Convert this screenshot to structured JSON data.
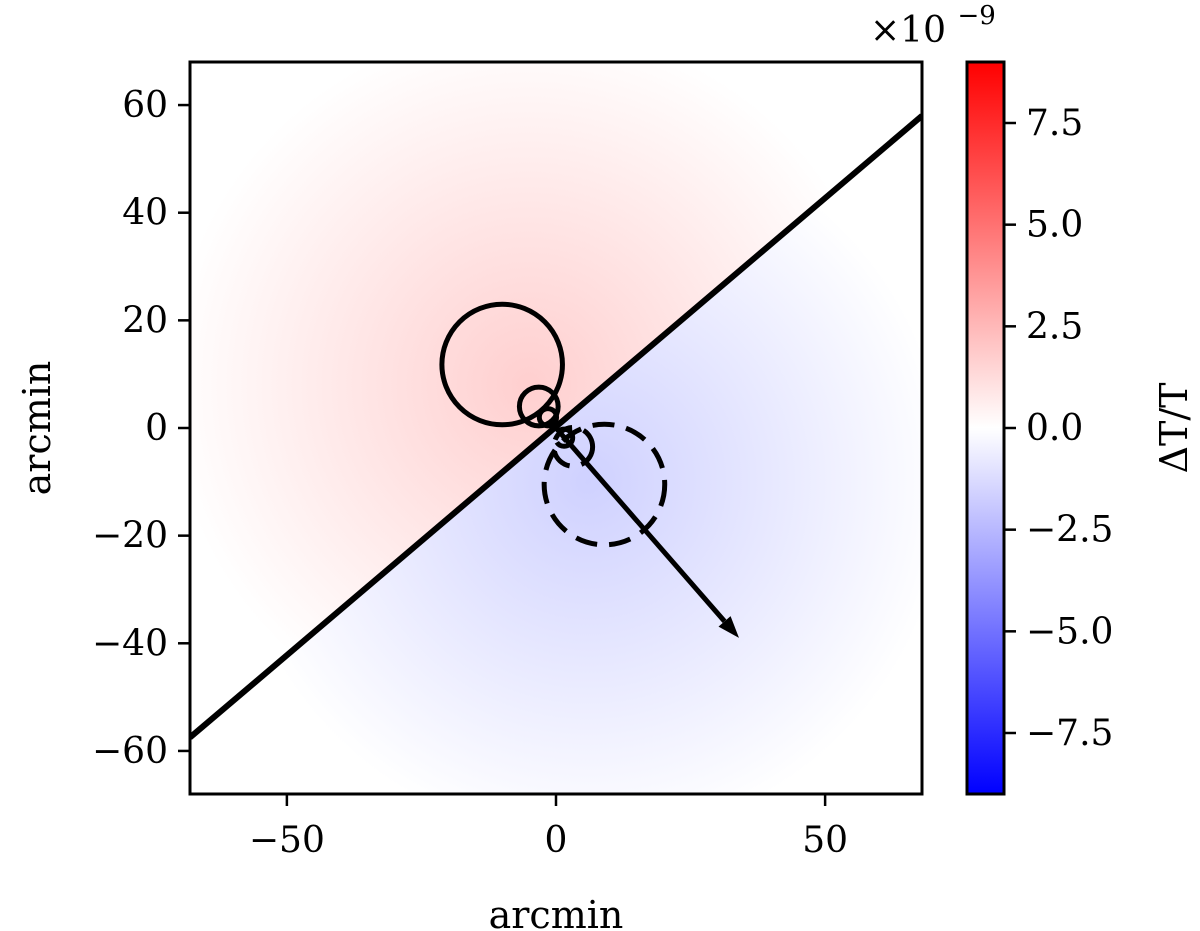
{
  "chart_data": {
    "type": "heatmap",
    "title": "",
    "xlabel": "arcmin",
    "ylabel": "arcmin",
    "xlim": [
      -68,
      68
    ],
    "ylim": [
      -68,
      68
    ],
    "xticks": [
      -50,
      0,
      50
    ],
    "xtick_labels": [
      "−50",
      "0",
      "50"
    ],
    "yticks": [
      60,
      40,
      20,
      0,
      -20,
      -40,
      -60
    ],
    "ytick_labels": [
      "60",
      "40",
      "20",
      "0",
      "−20",
      "−40",
      "−60"
    ],
    "colorbar": {
      "label": "ΔT/T",
      "exponent_label": "×10",
      "exponent_power": "−9",
      "range": [
        -9.0,
        9.0
      ],
      "ticks": [
        7.5,
        5.0,
        2.5,
        0.0,
        -2.5,
        -5.0,
        -7.5
      ],
      "tick_labels": [
        "7.5",
        "5.0",
        "2.5",
        "0.0",
        "−2.5",
        "−5.0",
        "−7.5"
      ],
      "cmap": "bwr",
      "color_min": "#0000ff",
      "color_mid": "#ffffff",
      "color_max": "#ff0000"
    },
    "dipole": {
      "positive_color": "#ffcfcf",
      "negative_color": "#cfd1ff",
      "positive_center": [
        -5,
        8
      ],
      "negative_center": [
        6,
        -10
      ]
    },
    "overlays": {
      "line": {
        "x": [
          -68,
          68
        ],
        "y": [
          -57.5,
          58
        ]
      },
      "arrow": {
        "x": [
          0,
          34
        ],
        "y": [
          0,
          -39
        ]
      },
      "solid_contours": [
        {
          "cx": -10,
          "cy": 11.8,
          "r": 11.2
        },
        {
          "cx": -3.2,
          "cy": 4.0,
          "r": 3.6
        },
        {
          "cx": -1.5,
          "cy": 2.0,
          "r": 1.6
        }
      ],
      "dashed_contours": [
        {
          "cx": 9,
          "cy": -10.5,
          "r": 11.2
        },
        {
          "cx": 3.2,
          "cy": -3.5,
          "r": 3.6
        },
        {
          "cx": 1.5,
          "cy": -1.8,
          "r": 1.6
        }
      ]
    }
  }
}
